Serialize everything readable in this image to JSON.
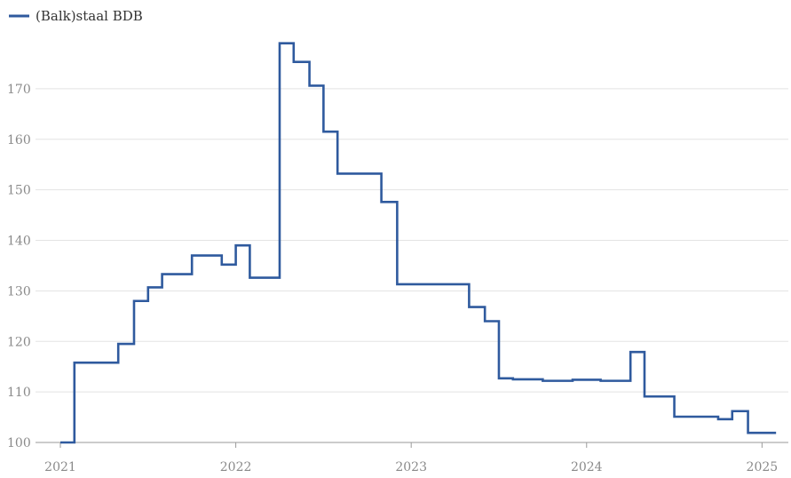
{
  "chart_data": {
    "type": "line",
    "step": true,
    "title": "",
    "xlabel": "",
    "ylabel": "",
    "legend": {
      "position": "top-left",
      "entries": [
        "(Balk)staal BDB"
      ]
    },
    "xlim": [
      2021.0,
      2025.15
    ],
    "ylim": [
      100,
      180
    ],
    "grid": {
      "horizontal": true,
      "vertical": false
    },
    "x_ticks": [
      {
        "value": 2021,
        "label": "2021"
      },
      {
        "value": 2022,
        "label": "2022"
      },
      {
        "value": 2023,
        "label": "2023"
      },
      {
        "value": 2024,
        "label": "2024"
      },
      {
        "value": 2025,
        "label": "2025"
      }
    ],
    "y_ticks": [
      {
        "value": 100,
        "label": "100"
      },
      {
        "value": 110,
        "label": "110"
      },
      {
        "value": 120,
        "label": "120"
      },
      {
        "value": 130,
        "label": "130"
      },
      {
        "value": 140,
        "label": "140"
      },
      {
        "value": 150,
        "label": "150"
      },
      {
        "value": 160,
        "label": "160"
      },
      {
        "value": 170,
        "label": "170"
      }
    ],
    "series": [
      {
        "name": "(Balk)staal BDB",
        "color": "#2f5a9e",
        "points": [
          [
            2021.0,
            100.0
          ],
          [
            2021.08,
            115.8
          ],
          [
            2021.33,
            119.5
          ],
          [
            2021.42,
            128.0
          ],
          [
            2021.5,
            130.7
          ],
          [
            2021.58,
            133.3
          ],
          [
            2021.75,
            137.0
          ],
          [
            2021.92,
            135.2
          ],
          [
            2022.0,
            139.0
          ],
          [
            2022.08,
            132.6
          ],
          [
            2022.25,
            179.0
          ],
          [
            2022.33,
            175.3
          ],
          [
            2022.42,
            170.6
          ],
          [
            2022.5,
            161.5
          ],
          [
            2022.58,
            153.2
          ],
          [
            2022.83,
            147.6
          ],
          [
            2022.92,
            131.3
          ],
          [
            2023.33,
            126.8
          ],
          [
            2023.42,
            124.0
          ],
          [
            2023.5,
            112.7
          ],
          [
            2023.58,
            112.5
          ],
          [
            2023.75,
            112.2
          ],
          [
            2023.92,
            112.4
          ],
          [
            2024.08,
            112.2
          ],
          [
            2024.25,
            117.9
          ],
          [
            2024.33,
            109.1
          ],
          [
            2024.5,
            105.1
          ],
          [
            2024.75,
            104.6
          ],
          [
            2024.83,
            106.2
          ],
          [
            2024.92,
            101.9
          ],
          [
            2025.08,
            101.9
          ]
        ]
      }
    ]
  }
}
